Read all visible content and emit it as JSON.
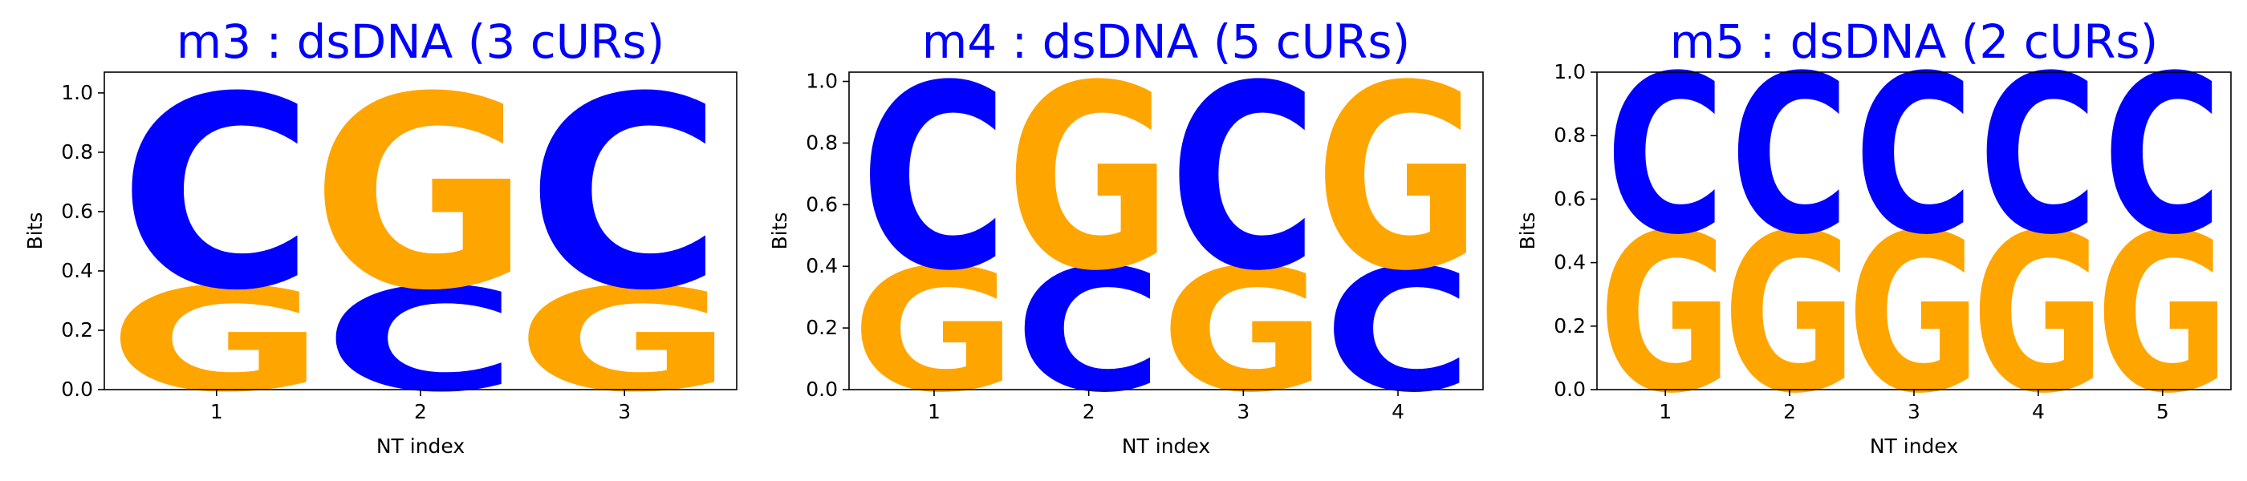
{
  "colors": {
    "C": "#0000ff",
    "G": "#ffa500",
    "title": "#0000ff",
    "axis": "#000000",
    "text": "#000000"
  },
  "chart_data": [
    {
      "type": "sequence-logo",
      "title": "m3 : dsDNA (3 cURs)",
      "xlabel": "NT index",
      "ylabel": "Bits",
      "ylim": [
        0,
        1.07
      ],
      "yticks": [
        "0.0",
        "0.2",
        "0.4",
        "0.6",
        "0.8",
        "1.0"
      ],
      "x": [
        "1",
        "2",
        "3"
      ],
      "positions": [
        [
          {
            "letter": "G",
            "height": 0.35
          },
          {
            "letter": "C",
            "height": 0.65
          }
        ],
        [
          {
            "letter": "C",
            "height": 0.35
          },
          {
            "letter": "G",
            "height": 0.65
          }
        ],
        [
          {
            "letter": "G",
            "height": 0.35
          },
          {
            "letter": "C",
            "height": 0.65
          }
        ]
      ]
    },
    {
      "type": "sequence-logo",
      "title": "m4 : dsDNA (5 cURs)",
      "xlabel": "NT index",
      "ylabel": "Bits",
      "ylim": [
        0,
        1.03
      ],
      "yticks": [
        "0.0",
        "0.2",
        "0.4",
        "0.6",
        "0.8",
        "1.0"
      ],
      "x": [
        "1",
        "2",
        "3",
        "4"
      ],
      "positions": [
        [
          {
            "letter": "G",
            "height": 0.4
          },
          {
            "letter": "C",
            "height": 0.6
          }
        ],
        [
          {
            "letter": "C",
            "height": 0.4
          },
          {
            "letter": "G",
            "height": 0.6
          }
        ],
        [
          {
            "letter": "G",
            "height": 0.4
          },
          {
            "letter": "C",
            "height": 0.6
          }
        ],
        [
          {
            "letter": "C",
            "height": 0.4
          },
          {
            "letter": "G",
            "height": 0.6
          }
        ]
      ]
    },
    {
      "type": "sequence-logo",
      "title": "m5 : dsDNA (2 cURs)",
      "xlabel": "NT index",
      "ylabel": "Bits",
      "ylim": [
        0,
        1.0
      ],
      "yticks": [
        "0.0",
        "0.2",
        "0.4",
        "0.6",
        "0.8",
        "1.0"
      ],
      "x": [
        "1",
        "2",
        "3",
        "4",
        "5"
      ],
      "positions": [
        [
          {
            "letter": "G",
            "height": 0.5
          },
          {
            "letter": "C",
            "height": 0.5
          }
        ],
        [
          {
            "letter": "G",
            "height": 0.5
          },
          {
            "letter": "C",
            "height": 0.5
          }
        ],
        [
          {
            "letter": "G",
            "height": 0.5
          },
          {
            "letter": "C",
            "height": 0.5
          }
        ],
        [
          {
            "letter": "G",
            "height": 0.5
          },
          {
            "letter": "C",
            "height": 0.5
          }
        ],
        [
          {
            "letter": "G",
            "height": 0.5
          },
          {
            "letter": "C",
            "height": 0.5
          }
        ]
      ]
    }
  ]
}
